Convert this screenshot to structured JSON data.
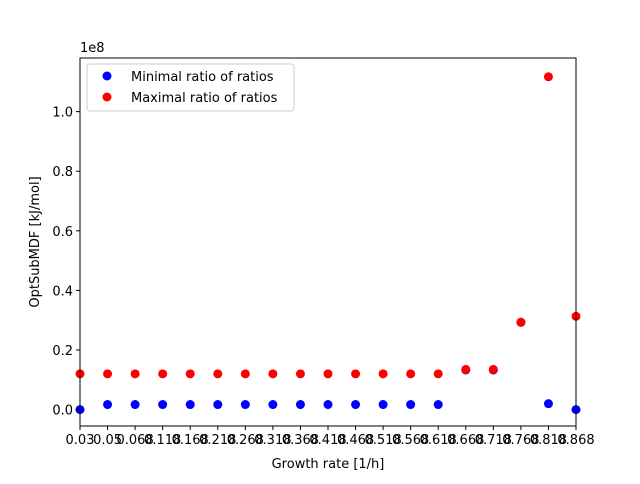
{
  "chart_data": {
    "type": "scatter",
    "xlabel": "Growth rate [1/h]",
    "ylabel": "OptSubMDF [kJ/mol]",
    "offset_label": "1e8",
    "x_tick_labels": [
      "0.03",
      "0.05",
      "0.068",
      "0.118",
      "0.168",
      "0.218",
      "0.268",
      "0.318",
      "0.368",
      "0.418",
      "0.468",
      "0.518",
      "0.568",
      "0.618",
      "0.668",
      "0.718",
      "0.768",
      "0.818",
      "0.868"
    ],
    "y_tick_labels": [
      "0.0",
      "0.2",
      "0.4",
      "0.6",
      "0.8",
      "1.0"
    ],
    "yticks": [
      0.0,
      0.2,
      0.4,
      0.6,
      0.8,
      1.0
    ],
    "ylim": [
      -0.055,
      1.18
    ],
    "legend_position": "upper-left",
    "series": [
      {
        "name": "Minimal ratio of ratios",
        "color": "#0000ff",
        "values": [
          0.0,
          0.017,
          0.017,
          0.017,
          0.017,
          0.017,
          0.017,
          0.017,
          0.017,
          0.017,
          0.017,
          0.017,
          0.017,
          0.017,
          0.133,
          0.133,
          0.293,
          0.02,
          0.0
        ]
      },
      {
        "name": "Maximal ratio of ratios",
        "color": "#ff0000",
        "values": [
          0.12,
          0.12,
          0.12,
          0.12,
          0.12,
          0.12,
          0.12,
          0.12,
          0.12,
          0.12,
          0.12,
          0.12,
          0.12,
          0.12,
          0.135,
          0.135,
          0.293,
          1.117,
          0.313
        ]
      }
    ]
  }
}
